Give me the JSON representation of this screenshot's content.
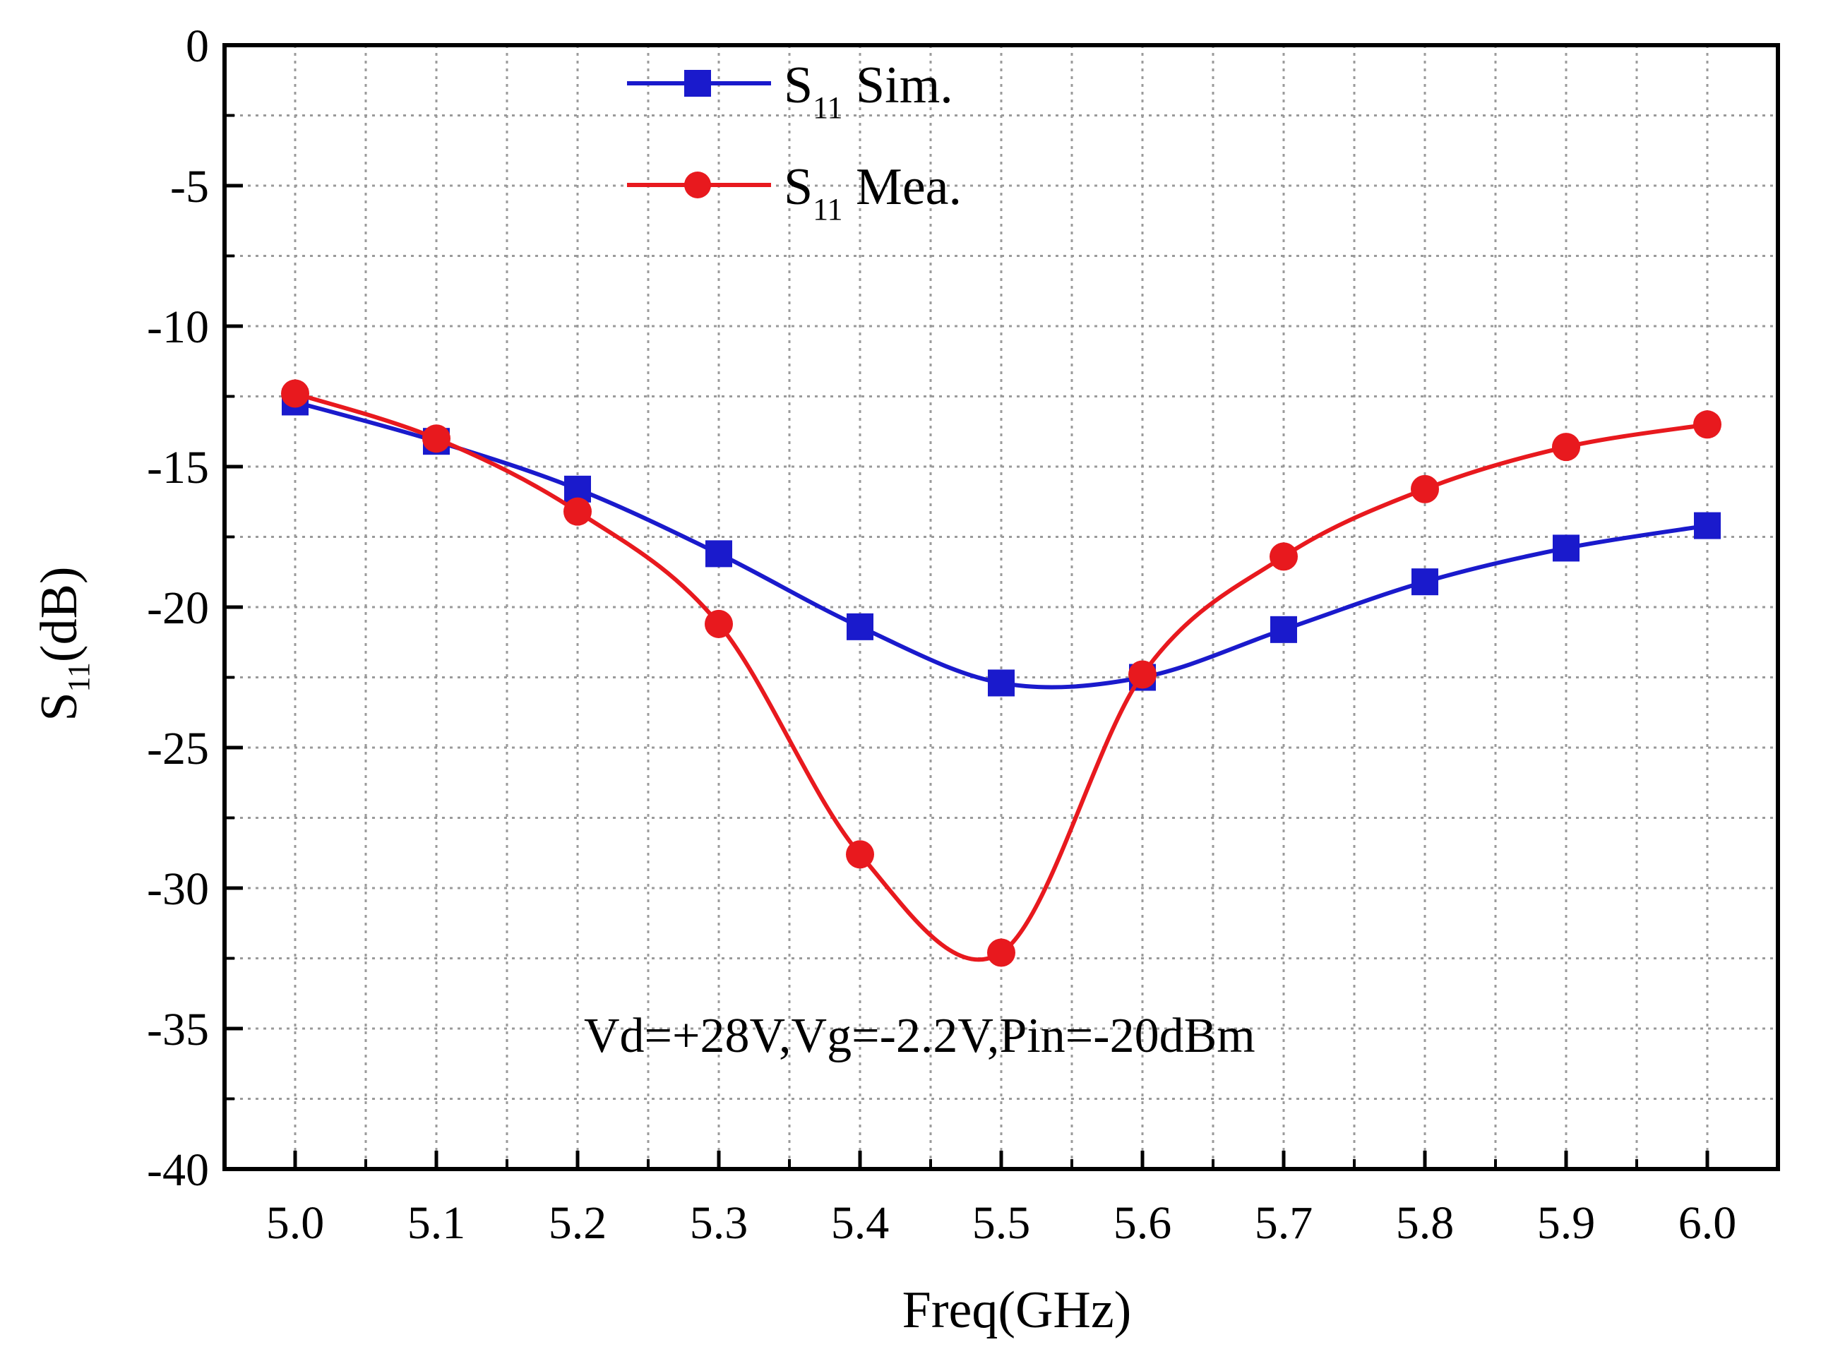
{
  "chart_data": {
    "type": "line",
    "title": "",
    "xlabel": "Freq(GHz)",
    "ylabel_main": "S",
    "ylabel_sub": "11",
    "ylabel_unit": "(dB)",
    "xlim": [
      4.95,
      6.05
    ],
    "ylim": [
      -40,
      0
    ],
    "x_ticks": [
      5.0,
      5.1,
      5.2,
      5.3,
      5.4,
      5.5,
      5.6,
      5.7,
      5.8,
      5.9,
      6.0
    ],
    "x_tick_labels": [
      "5.0",
      "5.1",
      "5.2",
      "5.3",
      "5.4",
      "5.5",
      "5.6",
      "5.7",
      "5.8",
      "5.9",
      "6.0"
    ],
    "y_ticks": [
      0,
      -5,
      -10,
      -15,
      -20,
      -25,
      -30,
      -35,
      -40
    ],
    "y_tick_labels": [
      "0",
      "-5",
      "-10",
      "-15",
      "-20",
      "-25",
      "-30",
      "-35",
      "-40"
    ],
    "grid": true,
    "legend_position": "top-center",
    "x": [
      5.0,
      5.1,
      5.2,
      5.3,
      5.4,
      5.5,
      5.6,
      5.7,
      5.8,
      5.9,
      6.0
    ],
    "series": [
      {
        "name_main": "S",
        "name_sub": "11",
        "name_suffix": " Sim.",
        "marker": "square",
        "color": "#1a1acc",
        "values": [
          -12.7,
          -14.1,
          -15.8,
          -18.1,
          -20.7,
          -22.7,
          -22.5,
          -20.8,
          -19.1,
          -17.9,
          -17.1
        ]
      },
      {
        "name_main": "S",
        "name_sub": "11",
        "name_suffix": " Mea.",
        "marker": "circle",
        "color": "#e8191e",
        "values": [
          -12.4,
          -14.0,
          -16.6,
          -20.6,
          -28.8,
          -32.3,
          -22.4,
          -18.2,
          -15.8,
          -14.3,
          -13.5
        ]
      }
    ],
    "annotation": "Vd=+28V,Vg=-2.2V,Pin=-20dBm"
  }
}
